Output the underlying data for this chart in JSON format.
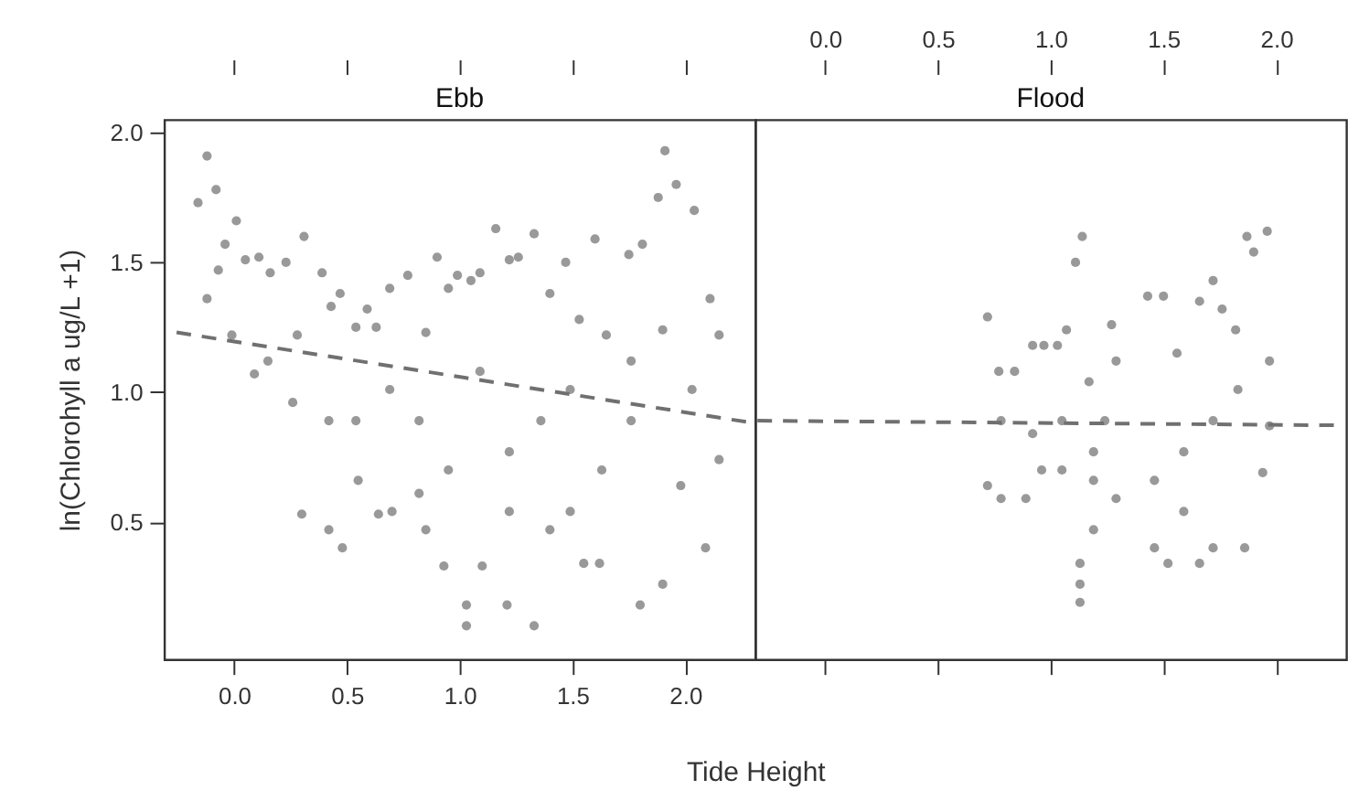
{
  "chart_data": [
    {
      "type": "scatter",
      "title": "Ebb",
      "xlabel": "Tide Height",
      "ylabel": "ln(Chlorohyll a ug/L +1)",
      "xlim": [
        -0.31,
        2.31
      ],
      "ylim": [
        -0.03,
        2.05
      ],
      "xticks": [
        {
          "value": 0,
          "label": "0.0"
        },
        {
          "value": 0.5,
          "label": "0.5"
        },
        {
          "value": 1,
          "label": "1.0"
        },
        {
          "value": 1.5,
          "label": "1.5"
        },
        {
          "value": 2,
          "label": "2.0"
        }
      ],
      "yticks": [
        {
          "value": 0.5,
          "label": "0.5"
        },
        {
          "value": 1,
          "label": "1.0"
        },
        {
          "value": 1.5,
          "label": "1.5"
        },
        {
          "value": 2,
          "label": "2.0"
        }
      ],
      "grid": false,
      "series": [
        {
          "marker": "circle",
          "color": "#999999",
          "x": [
            -0.16,
            -0.12,
            -0.08,
            -0.04,
            0.01,
            0.05,
            0.11,
            0.16,
            0.23,
            0.31,
            0.39,
            0.43,
            0.47,
            0.54,
            0.59,
            0.63,
            0.69,
            0.77,
            0.85,
            0.9,
            0.95,
            0.99,
            1.05,
            1.09,
            1.16,
            1.22,
            1.26,
            1.33,
            1.4,
            1.47,
            1.53,
            1.6,
            1.65,
            1.75,
            1.81,
            1.88,
            1.91,
            1.96,
            2.04,
            2.11,
            2.15,
            -0.12,
            -0.01,
            0.09,
            0.26,
            0.3,
            0.42,
            0.48,
            0.54,
            0.64,
            0.7,
            0.85,
            0.93,
            1.03,
            1.03,
            1.1,
            1.21,
            1.33,
            1.4,
            1.55,
            1.62,
            1.8,
            1.9,
            1.98,
            2.09,
            2.15,
            0.15,
            0.28,
            0.42,
            0.69,
            0.82,
            0.95,
            1.09,
            1.22,
            1.36,
            1.49,
            1.63,
            1.76,
            1.9,
            2.03,
            -0.07,
            1.76,
            0.55,
            0.82,
            1.49,
            1.22
          ],
          "values": [
            1.73,
            1.91,
            1.78,
            1.57,
            1.66,
            1.51,
            1.52,
            1.46,
            1.5,
            1.6,
            1.46,
            1.33,
            1.38,
            1.25,
            1.32,
            1.25,
            1.4,
            1.45,
            1.23,
            1.52,
            1.4,
            1.45,
            1.43,
            1.46,
            1.63,
            1.51,
            1.52,
            1.61,
            1.38,
            1.5,
            1.28,
            1.59,
            1.22,
            1.53,
            1.57,
            1.75,
            1.93,
            1.8,
            1.7,
            1.36,
            1.22,
            1.36,
            1.22,
            1.07,
            0.96,
            0.53,
            0.47,
            0.4,
            0.89,
            0.53,
            0.54,
            0.47,
            0.33,
            0.18,
            0.1,
            0.33,
            0.18,
            0.1,
            0.47,
            0.34,
            0.34,
            0.18,
            0.26,
            0.64,
            0.4,
            0.74,
            1.12,
            1.22,
            0.89,
            1.01,
            0.89,
            0.7,
            1.08,
            0.77,
            0.89,
            1.01,
            0.7,
            0.89,
            1.24,
            1.01,
            1.47,
            1.12,
            0.66,
            0.61,
            0.54,
            0.54
          ]
        },
        {
          "type": "line",
          "line_style": "dashed",
          "color": "#707070",
          "x": [
            -0.255,
            2.31
          ],
          "values": [
            1.23,
            0.88
          ]
        }
      ]
    },
    {
      "type": "scatter",
      "title": "Flood",
      "ylim": [
        -0.03,
        2.05
      ],
      "tick_labels": "x",
      "xlim": [
        -0.31,
        2.31
      ],
      "xticks": [
        {
          "value": 0,
          "label": "0.0"
        },
        {
          "value": 0.5,
          "label": "0.5"
        },
        {
          "value": 1,
          "label": "1.0"
        },
        {
          "value": 1.5,
          "label": "1.5"
        },
        {
          "value": 2,
          "label": "2.0"
        }
      ],
      "grid": false,
      "series": [
        {
          "marker": "circle",
          "color": "#999999",
          "x": [
            0.72,
            0.77,
            0.84,
            0.92,
            0.97,
            1.03,
            1.07,
            1.11,
            1.14,
            1.17,
            1.27,
            1.29,
            1.43,
            1.5,
            1.56,
            1.66,
            1.72,
            1.76,
            1.82,
            1.87,
            1.9,
            1.96,
            1.97,
            0.72,
            0.78,
            0.89,
            0.96,
            1.05,
            1.13,
            1.13,
            1.13,
            1.19,
            1.29,
            1.46,
            1.52,
            1.66,
            1.72,
            1.86,
            1.94,
            1.97,
            0.78,
            0.92,
            1.05,
            1.19,
            1.24,
            1.46,
            1.59,
            1.72,
            1.83,
            1.59,
            1.19
          ],
          "values": [
            1.29,
            1.08,
            1.08,
            1.18,
            1.18,
            1.18,
            1.24,
            1.5,
            1.6,
            1.04,
            1.26,
            1.12,
            1.37,
            1.37,
            1.15,
            1.35,
            1.43,
            1.32,
            1.24,
            1.6,
            1.54,
            1.62,
            1.12,
            0.64,
            0.59,
            0.59,
            0.7,
            0.7,
            0.19,
            0.26,
            0.34,
            0.47,
            0.59,
            0.4,
            0.34,
            0.34,
            0.4,
            0.4,
            0.69,
            0.87,
            0.89,
            0.84,
            0.89,
            0.77,
            0.89,
            0.66,
            0.77,
            0.89,
            1.01,
            0.54,
            0.66
          ]
        },
        {
          "type": "line",
          "line_style": "dashed",
          "color": "#707070",
          "x": [
            -0.3,
            2.29
          ],
          "values": [
            0.89,
            0.872
          ]
        }
      ]
    }
  ]
}
